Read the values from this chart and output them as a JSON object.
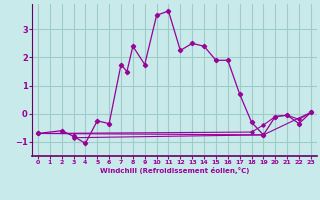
{
  "xlabel": "Windchill (Refroidissement éolien,°C)",
  "background_color": "#c8eaea",
  "grid_color": "#a0ccc8",
  "line_color": "#990099",
  "spine_color": "#660066",
  "xlim": [
    -0.5,
    23.5
  ],
  "ylim": [
    -1.5,
    3.9
  ],
  "yticks": [
    -1,
    0,
    1,
    2,
    3
  ],
  "xticks": [
    0,
    1,
    2,
    3,
    4,
    5,
    6,
    7,
    8,
    9,
    10,
    11,
    12,
    13,
    14,
    15,
    16,
    17,
    18,
    19,
    20,
    21,
    22,
    23
  ],
  "series": [
    [
      0,
      -0.7
    ],
    [
      2,
      -0.6
    ],
    [
      3,
      -0.8
    ],
    [
      4,
      -1.05
    ],
    [
      5,
      -0.25
    ],
    [
      6,
      -0.35
    ],
    [
      7,
      1.75
    ],
    [
      7.5,
      1.5
    ],
    [
      8,
      2.4
    ],
    [
      9,
      1.75
    ],
    [
      10,
      3.5
    ],
    [
      11,
      3.65
    ],
    [
      12,
      2.25
    ],
    [
      13,
      2.5
    ],
    [
      14,
      2.4
    ],
    [
      15,
      1.9
    ],
    [
      16,
      1.9
    ],
    [
      17,
      0.7
    ],
    [
      18,
      -0.3
    ],
    [
      19,
      -0.75
    ],
    [
      20,
      -0.1
    ],
    [
      21,
      -0.05
    ],
    [
      22,
      -0.35
    ],
    [
      23,
      0.05
    ]
  ],
  "flat1": {
    "points": [
      [
        0,
        -0.7
      ],
      [
        19,
        -0.75
      ]
    ]
  },
  "flat2": {
    "points": [
      [
        3,
        -0.85
      ],
      [
        19,
        -0.75
      ],
      [
        23,
        0.05
      ]
    ]
  },
  "flat3": {
    "points": [
      [
        0,
        -0.7
      ],
      [
        18,
        -0.65
      ],
      [
        19,
        -0.4
      ],
      [
        20,
        -0.1
      ],
      [
        21,
        -0.05
      ],
      [
        22,
        -0.2
      ],
      [
        23,
        0.05
      ]
    ]
  }
}
